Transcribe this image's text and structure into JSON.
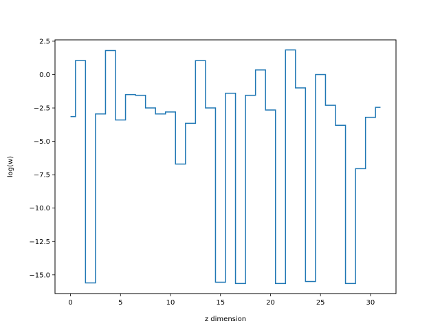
{
  "chart_data": {
    "type": "line",
    "drawstyle": "steps-mid",
    "title": "",
    "xlabel": "z dimension",
    "ylabel": "log(w)",
    "xlim": [
      -1.55,
      32.55
    ],
    "ylim": [
      -16.4,
      2.6
    ],
    "xticks": [
      0,
      5,
      10,
      15,
      20,
      25,
      30
    ],
    "yticks": [
      2.5,
      0.0,
      -2.5,
      -5.0,
      -7.5,
      -10.0,
      -12.5,
      -15.0
    ],
    "ytick_labels": [
      "2.5",
      "0.0",
      "−2.5",
      "−5.0",
      "−7.5",
      "−10.0",
      "−12.5",
      "−15.0"
    ],
    "grid": false,
    "series": [
      {
        "color": "#1f77b4",
        "x": [
          0,
          1,
          2,
          3,
          4,
          5,
          6,
          7,
          8,
          9,
          10,
          11,
          12,
          13,
          14,
          15,
          16,
          17,
          18,
          19,
          20,
          21,
          22,
          23,
          24,
          25,
          26,
          27,
          28,
          29,
          30,
          31
        ],
        "values": [
          -3.15,
          1.05,
          -15.6,
          -2.95,
          1.8,
          -3.4,
          -1.5,
          -1.55,
          -2.5,
          -2.95,
          -2.8,
          -6.7,
          -3.65,
          1.05,
          -2.5,
          -15.55,
          -1.4,
          -15.65,
          -1.55,
          0.35,
          -2.65,
          -15.65,
          1.85,
          -1.0,
          -15.5,
          0.0,
          -2.3,
          -3.8,
          -15.65,
          -7.05,
          -3.2,
          -2.45
        ]
      }
    ]
  }
}
